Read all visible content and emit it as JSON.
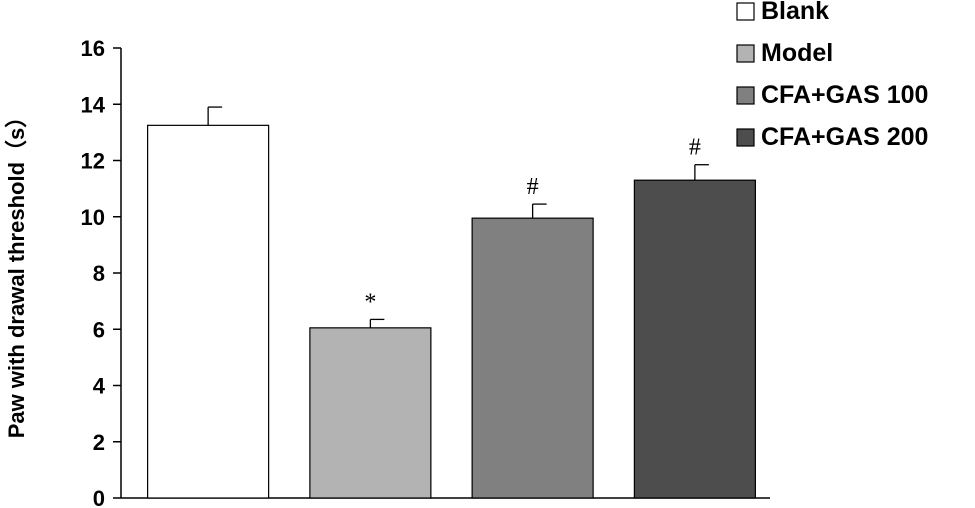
{
  "chart_data": {
    "type": "bar",
    "title": "",
    "xlabel": "",
    "ylabel": "Paw with drawal threshold（s）",
    "ylim": [
      0,
      16
    ],
    "yticks": [
      "0",
      "2",
      "4",
      "6",
      "8",
      "10",
      "12",
      "14",
      "16"
    ],
    "grid": false,
    "legend_position": "top-right",
    "categories": [
      "Blank",
      "Model",
      "CFA+GAS 100",
      "CFA+GAS 200"
    ],
    "values": [
      13.25,
      6.05,
      9.95,
      11.3
    ],
    "errors": [
      0.65,
      0.3,
      0.5,
      0.55
    ],
    "significance": [
      "",
      "*",
      "#",
      "#"
    ],
    "colors": [
      "#ffffff",
      "#b3b3b3",
      "#808080",
      "#4d4d4d"
    ]
  }
}
